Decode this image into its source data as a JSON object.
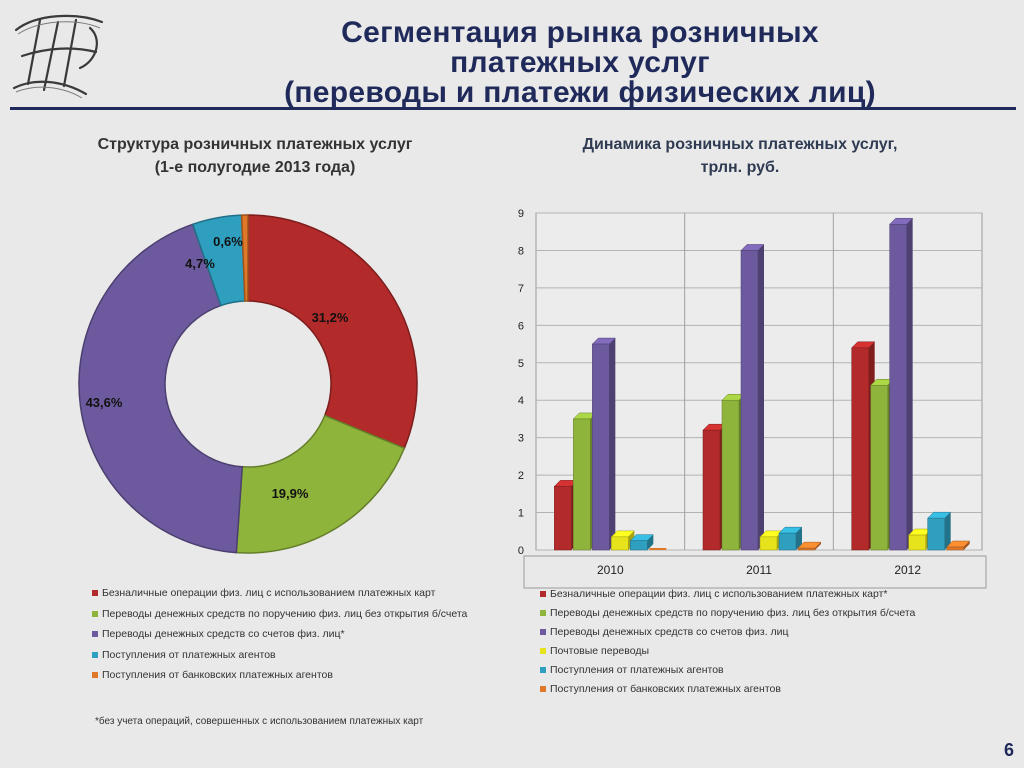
{
  "title": {
    "line1": "Сегментация рынка розничных",
    "line2": "платежных услуг",
    "line3": "(переводы и платежи физических лиц)"
  },
  "left_chart": {
    "subtitle_line1": "Структура розничных платежных услуг",
    "subtitle_line2": "(1-е полугодие 2013 года)",
    "legend": [
      "Безналичные операции физ. лиц с использованием платежных карт",
      "Переводы денежных средств по поручению физ. лиц  без открытия б/счета",
      "Переводы денежных средств со счетов физ. лиц*",
      "Поступления от платежных агентов",
      "Поступления от банковских платежных агентов"
    ],
    "footnote": "*без учета операций, совершенных с использованием платежных карт"
  },
  "right_chart": {
    "subtitle_line1": "Динамика розничных платежных услуг,",
    "subtitle_line2": "трлн. руб.",
    "legend": [
      "Безналичные операции физ. лиц с использованием платежных карт*",
      "Переводы денежных средств по поручению физ. лиц без открытия б/счета",
      "Переводы денежных средств со счетов физ. лиц",
      "Почтовые переводы",
      "Поступления от платежных агентов",
      "Поступления от банковских платежных агентов"
    ]
  },
  "page_number": "6",
  "colors": {
    "red": "#b22a2a",
    "green": "#8fb43c",
    "purple": "#6d5a9e",
    "yellow": "#e6e21b",
    "teal": "#2f9fbf",
    "orange": "#e0782a",
    "title": "#1f2a5a"
  },
  "chart_data": [
    {
      "type": "pie",
      "donut": true,
      "title": "Структура розничных платежных услуг (1-е полугодие 2013 года)",
      "slices": [
        {
          "label": "Безналичные операции физ. лиц с использованием платежных карт",
          "value": 31.2,
          "label_text": "31,2%",
          "color": "#b22a2a"
        },
        {
          "label": "Переводы денежных средств по поручению физ. лиц  без открытия б/счета",
          "value": 19.9,
          "label_text": "19,9%",
          "color": "#8fb43c"
        },
        {
          "label": "Переводы денежных средств со счетов физ. лиц*",
          "value": 43.6,
          "label_text": "43,6%",
          "color": "#6d5a9e"
        },
        {
          "label": "Поступления от платежных агентов",
          "value": 4.7,
          "label_text": "4,7%",
          "color": "#2f9fbf"
        },
        {
          "label": "Поступления от банковских платежных агентов",
          "value": 0.6,
          "label_text": "0,6%",
          "color": "#e0782a"
        }
      ]
    },
    {
      "type": "bar",
      "title": "Динамика розничных платежных услуг, трлн. руб.",
      "categories": [
        "2010",
        "2011",
        "2012"
      ],
      "ylim": [
        0,
        9
      ],
      "yticks": [
        0,
        1,
        2,
        3,
        4,
        5,
        6,
        7,
        8,
        9
      ],
      "grid": true,
      "series": [
        {
          "name": "Безналичные операции физ. лиц с использованием платежных карт*",
          "values": [
            1.7,
            3.2,
            5.4
          ],
          "color": "#b22a2a"
        },
        {
          "name": "Переводы денежных средств по поручению физ. лиц без открытия б/счета",
          "values": [
            3.5,
            4.0,
            4.4
          ],
          "color": "#8fb43c"
        },
        {
          "name": "Переводы денежных средств со счетов физ. лиц",
          "values": [
            5.5,
            8.0,
            8.7
          ],
          "color": "#6d5a9e"
        },
        {
          "name": "Почтовые переводы",
          "values": [
            0.35,
            0.35,
            0.4
          ],
          "color": "#e6e21b"
        },
        {
          "name": "Поступления от платежных агентов",
          "values": [
            0.25,
            0.45,
            0.85
          ],
          "color": "#2f9fbf"
        },
        {
          "name": "Поступления от банковских платежных агентов",
          "values": [
            0.0,
            0.05,
            0.08
          ],
          "color": "#e0782a"
        }
      ]
    }
  ]
}
